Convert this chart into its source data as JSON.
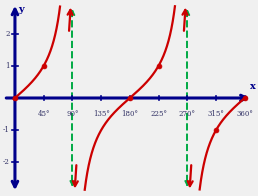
{
  "bg_color": "#f0f0f0",
  "axis_color": "#00008B",
  "curve_color": "#cc0000",
  "asymptote_color": "#00aa44",
  "dot_color": "#cc0000",
  "dot_edgecolor": "#cc0000",
  "xlim": [
    -20,
    375
  ],
  "ylim": [
    -3.0,
    3.0
  ],
  "xticks": [
    45,
    90,
    135,
    180,
    225,
    270,
    315,
    360
  ],
  "yticks": [
    -2,
    -1,
    1,
    2
  ],
  "asymptotes": [
    90,
    270
  ],
  "key_points": [
    [
      0,
      0
    ],
    [
      45,
      1.0
    ],
    [
      180,
      0
    ],
    [
      225,
      1.0
    ],
    [
      315,
      -1.0
    ],
    [
      360,
      0
    ]
  ],
  "figsize": [
    2.58,
    1.96
  ],
  "dpi": 100,
  "curve_lw": 1.6,
  "axis_lw": 2.2,
  "asym_lw": 1.4
}
